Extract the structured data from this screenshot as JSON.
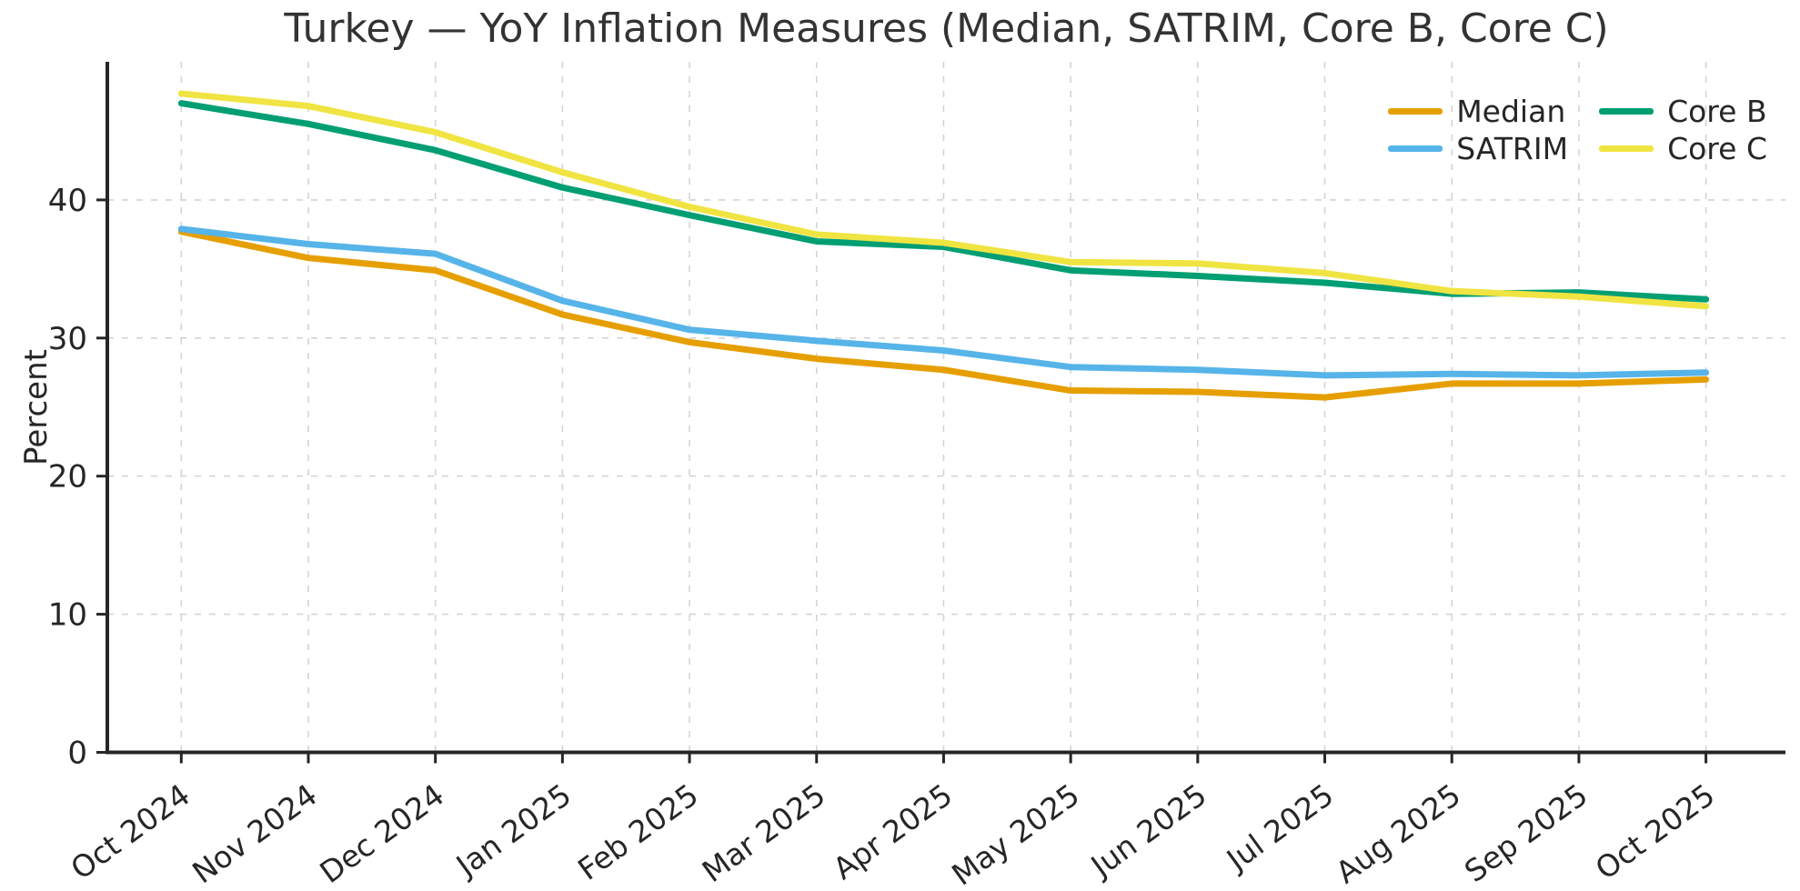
{
  "figure": {
    "background": "#ffffff"
  },
  "colors": {
    "text": "#262626",
    "axis": "#262626",
    "gridline": "#d4d4d4",
    "background": "#ffffff"
  },
  "chart_data": {
    "type": "line",
    "title": "Turkey — YoY Inflation Measures (Median, SATRIM, Core B, Core C)",
    "xlabel": "",
    "ylabel": "Percent",
    "categories": [
      "Oct 2024",
      "Nov 2024",
      "Dec 2024",
      "Jan 2025",
      "Feb 2025",
      "Mar 2025",
      "Apr 2025",
      "May 2025",
      "Jun 2025",
      "Jul 2025",
      "Aug 2025",
      "Sep 2025",
      "Oct 2025"
    ],
    "series": [
      {
        "name": "Median",
        "color": "#E69F00",
        "values": [
          37.7,
          35.8,
          34.9,
          31.7,
          29.7,
          28.5,
          27.7,
          26.2,
          26.1,
          25.7,
          26.7,
          26.7,
          27.0
        ]
      },
      {
        "name": "SATRIM",
        "color": "#56B4E9",
        "values": [
          37.9,
          36.8,
          36.1,
          32.7,
          30.6,
          29.8,
          29.1,
          27.9,
          27.7,
          27.3,
          27.4,
          27.3,
          27.5
        ]
      },
      {
        "name": "Core B",
        "color": "#009E73",
        "values": [
          47.0,
          45.5,
          43.6,
          40.9,
          38.9,
          37.0,
          36.6,
          34.9,
          34.5,
          34.0,
          33.2,
          33.3,
          32.8
        ]
      },
      {
        "name": "Core C",
        "color": "#F0E442",
        "values": [
          47.7,
          46.8,
          44.9,
          42.0,
          39.5,
          37.5,
          36.9,
          35.5,
          35.4,
          34.7,
          33.4,
          33.0,
          32.3
        ]
      }
    ],
    "y_ticks": [
      0,
      10,
      20,
      30,
      40
    ],
    "ylim": [
      0,
      50
    ],
    "x_tick_rotation": -36,
    "grid": true,
    "legend_position": "top-right",
    "legend_columns": 2
  }
}
